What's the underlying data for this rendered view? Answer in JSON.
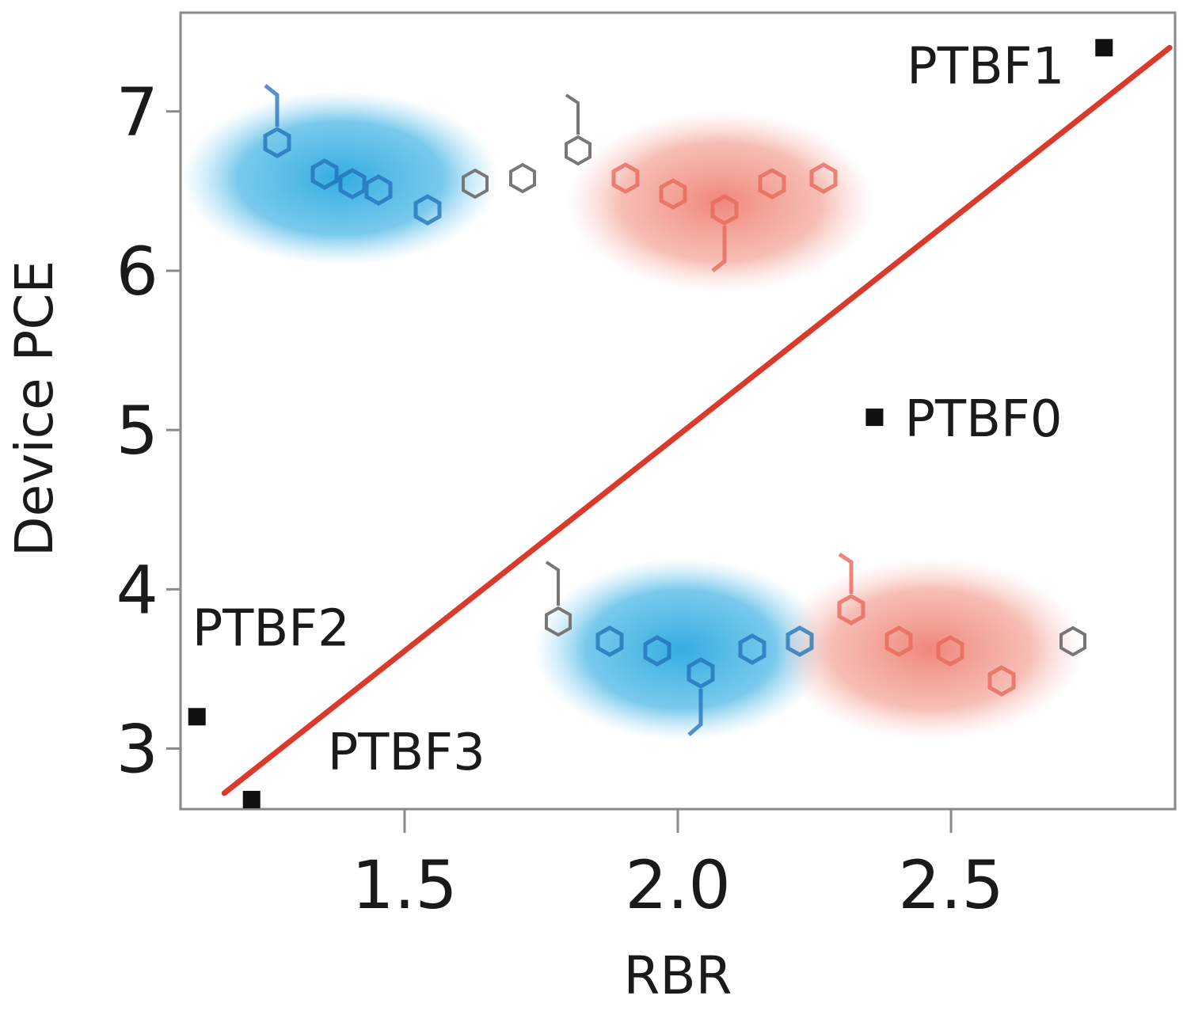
{
  "chart_data": {
    "type": "scatter",
    "xlabel": "RBR",
    "ylabel": "Device PCE",
    "xlim": [
      1.09,
      2.91
    ],
    "ylim": [
      2.62,
      7.62
    ],
    "xticks": [
      "1.5",
      "2.0",
      "2.5"
    ],
    "yticks": [
      "3",
      "4",
      "5",
      "6",
      "7"
    ],
    "grid": false,
    "points": [
      {
        "label": "PTBF1",
        "x": 2.78,
        "y": 7.4
      },
      {
        "label": "PTBF0",
        "x": 2.36,
        "y": 5.08
      },
      {
        "label": "PTBF2",
        "x": 1.12,
        "y": 3.2
      },
      {
        "label": "PTBF3",
        "x": 1.22,
        "y": 2.68
      }
    ],
    "fit_line": {
      "x": [
        1.17,
        2.9
      ],
      "y": [
        2.72,
        7.4
      ],
      "color": "#d93a2b"
    },
    "colors": {
      "point": "#111111",
      "fit": "#d93a2b",
      "donor_highlight": "#29a8e0",
      "acceptor_highlight": "#ee7a6a"
    }
  }
}
